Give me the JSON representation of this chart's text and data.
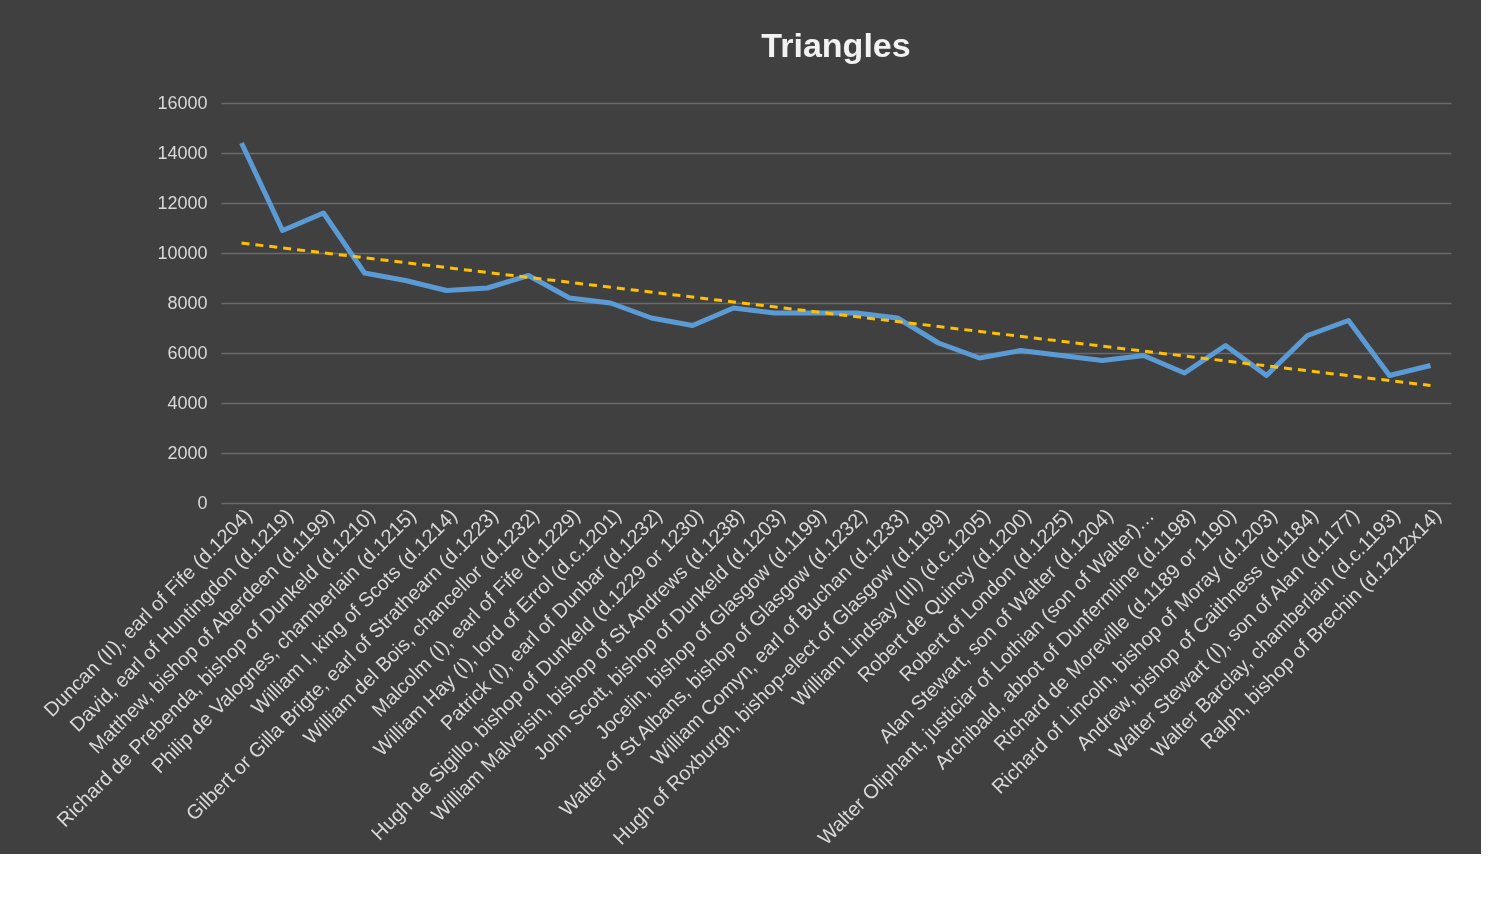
{
  "chart_data": {
    "type": "line",
    "title": "Triangles",
    "categories": [
      "Duncan (II), earl of Fife (d.1204)",
      "David, earl of Huntingdon (d.1219)",
      "Matthew, bishop of Aberdeen (d.1199)",
      "Richard de Prebenda, bishop of Dunkeld (d.1210)",
      "Philip de Valognes, chamberlain (d.1215)",
      "William I, king of Scots (d.1214)",
      "Gilbert or Gilla Brigte, earl of Strathearn (d.1223)",
      "William del Bois, chancellor (d.1232)",
      "Malcolm (I), earl of Fife (d.1229)",
      "William Hay (I), lord of Errol (d.c.1201)",
      "Patrick (I), earl of Dunbar (d.1232)",
      "Hugh de Sigillo, bishop of Dunkeld (d.1229 or 1230)",
      "William Malveisin, bishop of St Andrews (d.1238)",
      "John Scott, bishop of Dunkeld (d.1203)",
      "Jocelin, bishop of Glasgow (d.1199)",
      "Walter of St Albans, bishop of Glasgow (d.1232)",
      "William Comyn, earl of Buchan (d.1233)",
      "Hugh of Roxburgh, bishop-elect of Glasgow (d.1199)",
      "William Lindsay (III) (d.c.1205)",
      "Robert de Quincy (d.1200)",
      "Robert of London (d.1225)",
      "Alan Stewart, son of Walter (d.1204)",
      "Walter Oliphant, justiciar of Lothian (son of Walter)…",
      "Archibald, abbot of Dunfermline (d.1198)",
      "Richard de Moreville (d.1189 or 1190)",
      "Richard of Lincoln, bishop of Moray (d.1203)",
      "Andrew, bishop of Caithness (d.1184)",
      "Walter Stewart (I), son of Alan (d.1177)",
      "Walter Barclay, chamberlain (d.c.1193)",
      "Ralph, bishop of Brechin  (d.1212x14)"
    ],
    "series": [
      {
        "color": "#5b9bd5",
        "values": [
          14400,
          10900,
          11600,
          9200,
          8900,
          8500,
          8600,
          9100,
          8200,
          8000,
          7400,
          7100,
          7800,
          7600,
          7600,
          7600,
          7400,
          6400,
          5800,
          6100,
          5900,
          5700,
          5900,
          5200,
          6300,
          5100,
          6700,
          7300,
          5100,
          5500
        ]
      },
      {
        "type": "line",
        "color": "#ffc000",
        "line_style": "dashed",
        "values": [
          10400,
          null,
          null,
          null,
          null,
          null,
          null,
          null,
          null,
          null,
          null,
          null,
          null,
          null,
          null,
          null,
          null,
          null,
          null,
          null,
          null,
          null,
          null,
          null,
          null,
          null,
          null,
          null,
          null,
          4700
        ]
      }
    ],
    "ylim": [
      0,
      16000
    ],
    "yticks": [
      0,
      2000,
      4000,
      6000,
      8000,
      10000,
      12000,
      14000,
      16000
    ],
    "grid": "y"
  }
}
